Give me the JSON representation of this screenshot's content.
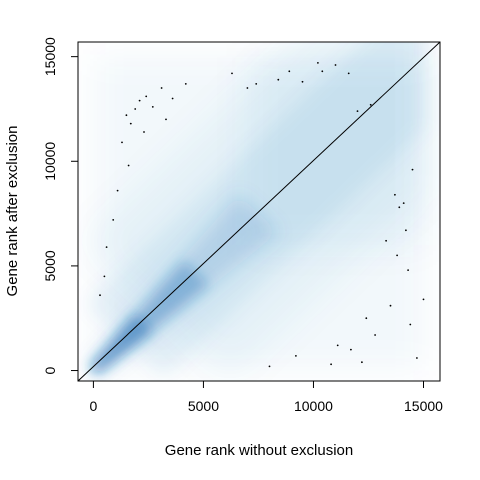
{
  "chart_data": {
    "type": "scatter",
    "title": "",
    "xlabel": "Gene rank without exclusion",
    "ylabel": "Gene rank after exclusion",
    "xlim": [
      -700,
      15750
    ],
    "ylim": [
      -500,
      15700
    ],
    "x_ticks": [
      {
        "value": 0,
        "label": "0"
      },
      {
        "value": 5000,
        "label": "5000"
      },
      {
        "value": 10000,
        "label": "10000"
      },
      {
        "value": 15000,
        "label": "15000"
      }
    ],
    "y_ticks": [
      {
        "value": 0,
        "label": "0"
      },
      {
        "value": 5000,
        "label": "5000"
      },
      {
        "value": 10000,
        "label": "10000"
      },
      {
        "value": 15000,
        "label": "15000"
      }
    ],
    "grid": false,
    "legend": "none",
    "rendering": "smoothed density scatter",
    "density_color": "#2171b5",
    "reference_line": {
      "from": [
        -700,
        -500
      ],
      "to": [
        15750,
        15700
      ],
      "color": "#000000"
    },
    "outliers": [
      [
        1500,
        12200
      ],
      [
        1700,
        11800
      ],
      [
        1900,
        12500
      ],
      [
        2100,
        12900
      ],
      [
        2400,
        13100
      ],
      [
        2700,
        12600
      ],
      [
        3100,
        13500
      ],
      [
        3600,
        13000
      ],
      [
        1300,
        10900
      ],
      [
        1600,
        9800
      ],
      [
        1100,
        8600
      ],
      [
        900,
        7200
      ],
      [
        600,
        5900
      ],
      [
        500,
        4500
      ],
      [
        300,
        3600
      ],
      [
        8400,
        13900
      ],
      [
        8900,
        14300
      ],
      [
        9500,
        13800
      ],
      [
        10200,
        14700
      ],
      [
        10400,
        14300
      ],
      [
        11000,
        14600
      ],
      [
        11600,
        14200
      ],
      [
        7400,
        13700
      ],
      [
        12000,
        12400
      ],
      [
        12600,
        12700
      ],
      [
        13700,
        8400
      ],
      [
        13900,
        7800
      ],
      [
        14100,
        8000
      ],
      [
        14200,
        6700
      ],
      [
        13800,
        5500
      ],
      [
        14300,
        4800
      ],
      [
        13500,
        3100
      ],
      [
        14400,
        2200
      ],
      [
        12800,
        1700
      ],
      [
        12200,
        400
      ],
      [
        11700,
        1000
      ],
      [
        10800,
        300
      ],
      [
        9200,
        700
      ],
      [
        8000,
        200
      ],
      [
        14700,
        600
      ],
      [
        13300,
        6200
      ],
      [
        14500,
        9600
      ],
      [
        15000,
        3400
      ],
      [
        6300,
        14200
      ],
      [
        7000,
        13500
      ],
      [
        2300,
        11400
      ],
      [
        3300,
        12000
      ],
      [
        4200,
        13700
      ],
      [
        12400,
        2500
      ],
      [
        11100,
        1200
      ]
    ]
  }
}
